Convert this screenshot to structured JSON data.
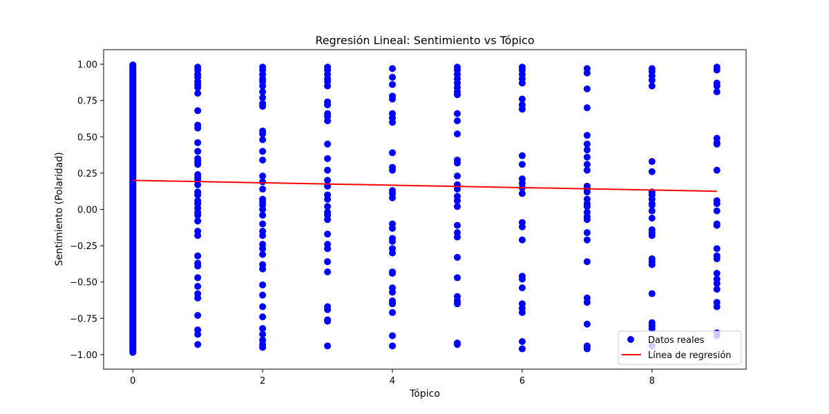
{
  "chart_data": {
    "type": "scatter",
    "title": "Regresión Lineal: Sentimiento vs Tópico",
    "xlabel": "Tópico",
    "ylabel": "Sentimiento (Polaridad)",
    "xlim": [
      -0.45,
      9.45
    ],
    "ylim": [
      -1.1,
      1.1
    ],
    "xticks": [
      0,
      2,
      4,
      6,
      8
    ],
    "yticks": [
      -1.0,
      -0.75,
      -0.5,
      -0.25,
      0.0,
      0.25,
      0.5,
      0.75,
      1.0
    ],
    "xtick_labels": [
      "0",
      "2",
      "4",
      "6",
      "8"
    ],
    "ytick_labels": [
      "−1.00",
      "−0.75",
      "−0.50",
      "−0.25",
      "0.00",
      "0.25",
      "0.50",
      "0.75",
      "1.00"
    ],
    "grid": false,
    "legend_position": "bottom-right",
    "series": [
      {
        "name": "Datos reales",
        "kind": "scatter",
        "color": "#0000ff",
        "points": [
          {
            "x": 1,
            "y": [
              0.98,
              0.96,
              0.93,
              0.91,
              0.88,
              0.86,
              0.84,
              0.8,
              0.68,
              0.58,
              0.56,
              0.46,
              0.4,
              0.35,
              0.33,
              0.31,
              0.24,
              0.22,
              0.2,
              0.17,
              0.12,
              0.1,
              0.06,
              0.04,
              0.01,
              -0.02,
              -0.04,
              -0.08,
              -0.15,
              -0.18,
              -0.32,
              -0.37,
              -0.39,
              -0.47,
              -0.53,
              -0.58,
              -0.61,
              -0.73,
              -0.83,
              -0.86,
              -0.93
            ]
          },
          {
            "x": 2,
            "y": [
              0.98,
              0.96,
              0.93,
              0.9,
              0.88,
              0.85,
              0.81,
              0.77,
              0.73,
              0.71,
              0.54,
              0.52,
              0.48,
              0.4,
              0.34,
              0.23,
              0.19,
              0.14,
              0.07,
              0.05,
              0.03,
              0.0,
              -0.04,
              -0.1,
              -0.15,
              -0.18,
              -0.24,
              -0.27,
              -0.31,
              -0.38,
              -0.41,
              -0.52,
              -0.59,
              -0.67,
              -0.74,
              -0.82,
              -0.86,
              -0.9,
              -0.93,
              -0.95
            ]
          },
          {
            "x": 3,
            "y": [
              0.98,
              0.96,
              0.93,
              0.9,
              0.88,
              0.85,
              0.74,
              0.72,
              0.66,
              0.64,
              0.61,
              0.45,
              0.35,
              0.27,
              0.2,
              0.16,
              0.1,
              0.07,
              0.02,
              -0.02,
              -0.04,
              -0.07,
              -0.17,
              -0.24,
              -0.27,
              -0.36,
              -0.43,
              -0.67,
              -0.69,
              -0.76,
              -0.77,
              -0.94
            ]
          },
          {
            "x": 4,
            "y": [
              0.97,
              0.91,
              0.86,
              0.78,
              0.76,
              0.66,
              0.63,
              0.6,
              0.39,
              0.29,
              0.27,
              0.13,
              0.11,
              0.08,
              -0.1,
              -0.13,
              -0.2,
              -0.22,
              -0.27,
              -0.3,
              -0.43,
              -0.44,
              -0.54,
              -0.57,
              -0.63,
              -0.65,
              -0.71,
              -0.87,
              -0.94
            ]
          },
          {
            "x": 5,
            "y": [
              0.98,
              0.96,
              0.93,
              0.9,
              0.87,
              0.84,
              0.81,
              0.79,
              0.66,
              0.61,
              0.52,
              0.34,
              0.32,
              0.23,
              0.17,
              0.14,
              0.09,
              0.06,
              0.02,
              -0.11,
              -0.16,
              -0.19,
              -0.33,
              -0.47,
              -0.6,
              -0.63,
              -0.65,
              -0.92,
              -0.93
            ]
          },
          {
            "x": 6,
            "y": [
              0.98,
              0.96,
              0.93,
              0.9,
              0.87,
              0.76,
              0.72,
              0.69,
              0.37,
              0.31,
              0.21,
              0.18,
              0.15,
              0.11,
              -0.09,
              -0.12,
              -0.21,
              -0.46,
              -0.48,
              -0.54,
              -0.65,
              -0.68,
              -0.71,
              -0.91,
              -0.96
            ]
          },
          {
            "x": 7,
            "y": [
              0.97,
              0.94,
              0.83,
              0.7,
              0.51,
              0.45,
              0.41,
              0.36,
              0.31,
              0.27,
              0.16,
              0.14,
              0.12,
              0.07,
              0.04,
              0.02,
              -0.02,
              -0.05,
              -0.07,
              -0.16,
              -0.21,
              -0.36,
              -0.61,
              -0.64,
              -0.79,
              -0.94,
              -0.96
            ]
          },
          {
            "x": 8,
            "y": [
              0.97,
              0.95,
              0.92,
              0.89,
              0.85,
              0.33,
              0.26,
              0.12,
              0.1,
              0.07,
              0.04,
              0.03,
              -0.01,
              -0.06,
              -0.14,
              -0.16,
              -0.18,
              -0.34,
              -0.36,
              -0.38,
              -0.58,
              -0.78,
              -0.8,
              -0.82,
              -0.94
            ]
          },
          {
            "x": 9,
            "y": [
              0.98,
              0.96,
              0.87,
              0.85,
              0.81,
              0.49,
              0.46,
              0.45,
              0.27,
              0.06,
              0.04,
              -0.01,
              -0.1,
              -0.11,
              -0.27,
              -0.32,
              -0.34,
              -0.44,
              -0.48,
              -0.51,
              -0.55,
              -0.64,
              -0.67,
              -0.85,
              -0.87
            ]
          }
        ],
        "dense_column": {
          "x": 0,
          "y_min": -0.985,
          "y_max": 0.995
        }
      },
      {
        "name": "Línea de regresión",
        "kind": "line",
        "color": "#ff0000",
        "x": [
          0,
          9
        ],
        "y": [
          0.2,
          0.125
        ]
      }
    ]
  }
}
